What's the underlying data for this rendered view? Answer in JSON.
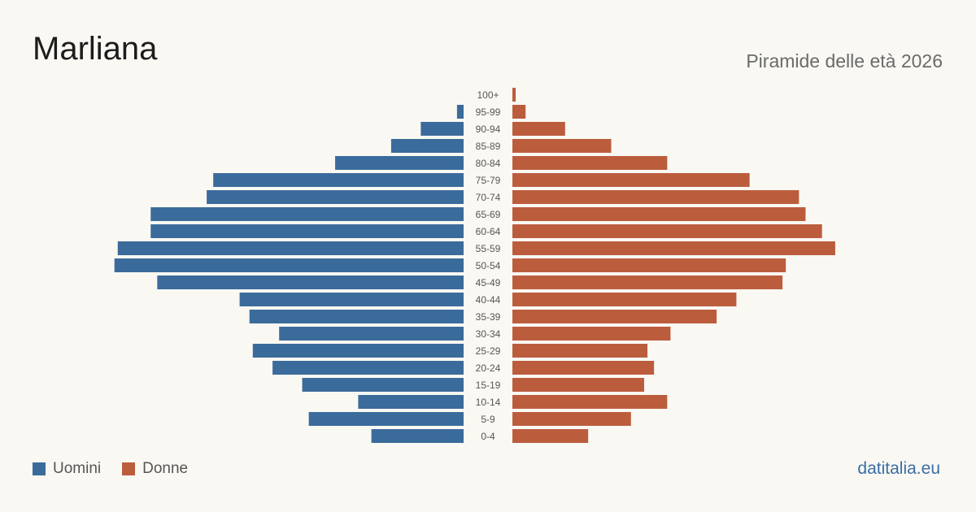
{
  "title": "Marliana",
  "subtitle": "Piramide delle età 2026",
  "brand": "datitalia.eu",
  "legend": {
    "men": "Uomini",
    "women": "Donne"
  },
  "colors": {
    "men": "#3b6b9b",
    "women": "#bb5d3d",
    "background": "#faf8f3"
  },
  "chart_data": {
    "type": "bar",
    "orientation": "horizontal-pyramid",
    "title": "Marliana",
    "subtitle": "Piramide delle età 2026",
    "categories": [
      "100+",
      "95-99",
      "90-94",
      "85-89",
      "80-84",
      "75-79",
      "70-74",
      "65-69",
      "60-64",
      "55-59",
      "50-54",
      "45-49",
      "40-44",
      "35-39",
      "30-34",
      "25-29",
      "20-24",
      "15-19",
      "10-14",
      "5-9",
      "0-4"
    ],
    "series": [
      {
        "name": "Uomini",
        "values": [
          0,
          2,
          13,
          22,
          39,
          76,
          78,
          95,
          95,
          105,
          106,
          93,
          68,
          65,
          56,
          64,
          58,
          49,
          32,
          47,
          28
        ]
      },
      {
        "name": "Donne",
        "values": [
          1,
          4,
          16,
          30,
          47,
          72,
          87,
          89,
          94,
          98,
          83,
          82,
          68,
          62,
          48,
          41,
          43,
          40,
          47,
          36,
          23
        ]
      }
    ],
    "legend_position": "bottom-left",
    "grid": false
  }
}
